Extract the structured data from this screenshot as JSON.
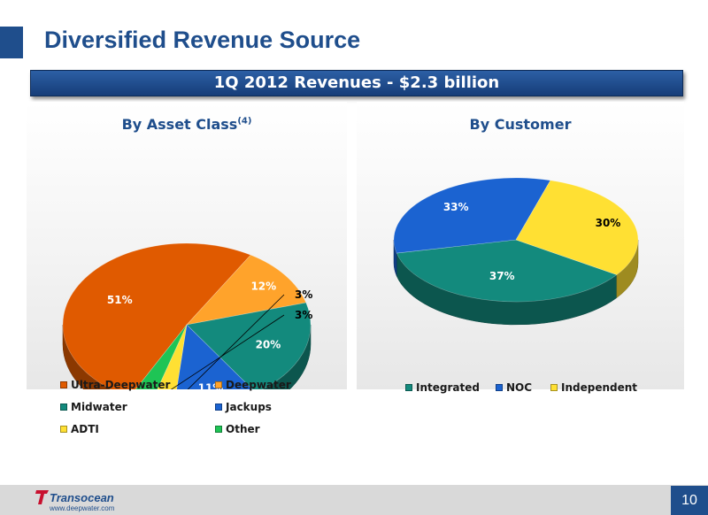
{
  "slide": {
    "title": "Diversified Revenue Source",
    "banner": "1Q 2012 Revenues - $2.3 billion",
    "page_number": "10",
    "logo_text": "Transocean",
    "url": "www.deepwater.com"
  },
  "chart_data": [
    {
      "type": "pie",
      "title": "By Asset Class",
      "title_note": "(4)",
      "slices": [
        {
          "name": "Ultra-Deepwater",
          "value": 51,
          "label": "51%",
          "color": "#e05a00"
        },
        {
          "name": "Deepwater",
          "value": 12,
          "label": "12%",
          "color": "#ffa32b"
        },
        {
          "name": "Midwater",
          "value": 20,
          "label": "20%",
          "color": "#138a7d"
        },
        {
          "name": "Jackups",
          "value": 11,
          "label": "11%",
          "color": "#1b63d1"
        },
        {
          "name": "ADTI",
          "value": 3,
          "label": "3%",
          "color": "#ffe033"
        },
        {
          "name": "Other",
          "value": 3,
          "label": "3%",
          "color": "#1ec455"
        }
      ],
      "legend": [
        "Ultra-Deepwater",
        "Deepwater",
        "Midwater",
        "Jackups",
        "ADTI",
        "Other"
      ]
    },
    {
      "type": "pie",
      "title": "By Customer",
      "slices": [
        {
          "name": "Integrated",
          "value": 37,
          "label": "37%",
          "color": "#138a7d"
        },
        {
          "name": "NOC",
          "value": 33,
          "label": "33%",
          "color": "#1b63d1"
        },
        {
          "name": "Independent",
          "value": 30,
          "label": "30%",
          "color": "#ffe033"
        }
      ],
      "legend": [
        "Integrated",
        "NOC",
        "Independent"
      ]
    }
  ]
}
